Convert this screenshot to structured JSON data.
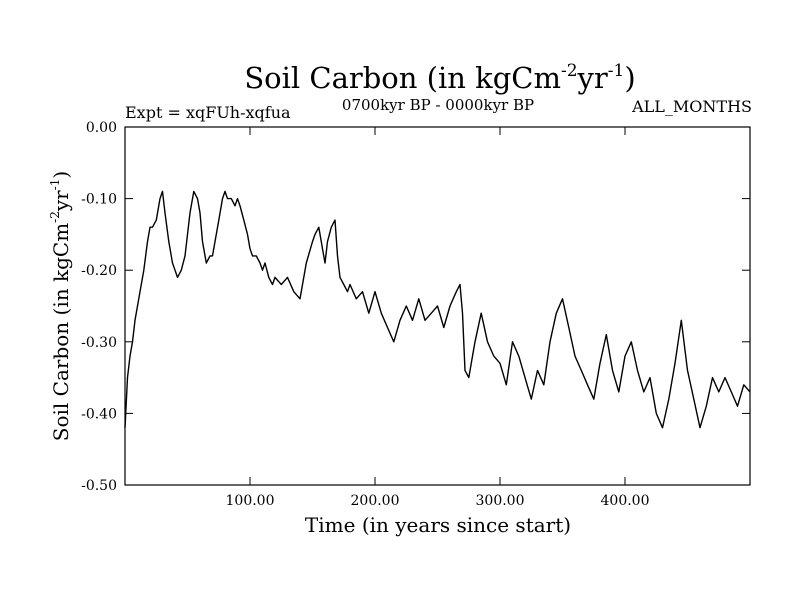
{
  "header": {
    "expt_label": "Expt = xqFUh-xqfua",
    "period_label": "0700kyr BP - 0000kyr BP",
    "months_label": "ALL_MONTHS"
  },
  "colors": {
    "line": "#000000",
    "background": "#ffffff"
  },
  "chart_data": {
    "type": "line",
    "title": {
      "text": "Soil Carbon (in kgCm",
      "exp1": "-2",
      "mid": "yr",
      "exp2": "-1",
      "close": ")"
    },
    "xlabel": "Time (in years since start)",
    "ylabel": {
      "text": "Soil Carbon (in kgCm",
      "exp1": "-2",
      "mid": "yr",
      "exp2": "-1",
      "close": ")"
    },
    "xlim": [
      0,
      500
    ],
    "ylim": [
      -0.5,
      0.0
    ],
    "x_ticks": [
      {
        "value": 100,
        "label": "100.00"
      },
      {
        "value": 200,
        "label": "200.00"
      },
      {
        "value": 300,
        "label": "300.00"
      },
      {
        "value": 400,
        "label": "400.00"
      }
    ],
    "y_ticks": [
      {
        "value": 0.0,
        "label": "0.00"
      },
      {
        "value": -0.1,
        "label": "-0.10"
      },
      {
        "value": -0.2,
        "label": "-0.20"
      },
      {
        "value": -0.3,
        "label": "-0.30"
      },
      {
        "value": -0.4,
        "label": "-0.40"
      },
      {
        "value": -0.5,
        "label": "-0.50"
      }
    ],
    "series": [
      {
        "name": "Soil Carbon",
        "x": [
          0,
          2,
          4,
          6,
          8,
          10,
          12,
          15,
          18,
          20,
          22,
          25,
          28,
          30,
          32,
          35,
          38,
          40,
          42,
          45,
          48,
          50,
          52,
          55,
          58,
          60,
          62,
          65,
          68,
          70,
          72,
          75,
          78,
          80,
          82,
          85,
          88,
          90,
          92,
          95,
          98,
          100,
          102,
          105,
          108,
          110,
          112,
          115,
          118,
          120,
          125,
          130,
          135,
          140,
          145,
          150,
          152,
          155,
          158,
          160,
          162,
          165,
          168,
          170,
          172,
          175,
          178,
          180,
          185,
          190,
          195,
          200,
          205,
          210,
          215,
          220,
          225,
          230,
          235,
          240,
          245,
          250,
          255,
          260,
          265,
          268,
          270,
          272,
          275,
          278,
          280,
          285,
          290,
          295,
          300,
          305,
          310,
          315,
          320,
          325,
          330,
          335,
          340,
          345,
          350,
          355,
          360,
          365,
          370,
          375,
          380,
          385,
          390,
          395,
          400,
          405,
          410,
          415,
          420,
          425,
          430,
          435,
          440,
          445,
          450,
          455,
          460,
          465,
          470,
          475,
          480,
          485,
          490,
          495,
          500
        ],
        "y": [
          -0.42,
          -0.35,
          -0.32,
          -0.3,
          -0.27,
          -0.25,
          -0.23,
          -0.2,
          -0.16,
          -0.14,
          -0.14,
          -0.13,
          -0.1,
          -0.09,
          -0.12,
          -0.16,
          -0.19,
          -0.2,
          -0.21,
          -0.2,
          -0.18,
          -0.15,
          -0.12,
          -0.09,
          -0.1,
          -0.12,
          -0.16,
          -0.19,
          -0.18,
          -0.18,
          -0.16,
          -0.13,
          -0.1,
          -0.09,
          -0.1,
          -0.1,
          -0.11,
          -0.1,
          -0.11,
          -0.13,
          -0.15,
          -0.17,
          -0.18,
          -0.18,
          -0.19,
          -0.2,
          -0.19,
          -0.21,
          -0.22,
          -0.21,
          -0.22,
          -0.21,
          -0.23,
          -0.24,
          -0.19,
          -0.16,
          -0.15,
          -0.14,
          -0.17,
          -0.19,
          -0.16,
          -0.14,
          -0.13,
          -0.18,
          -0.21,
          -0.22,
          -0.23,
          -0.22,
          -0.24,
          -0.23,
          -0.26,
          -0.23,
          -0.26,
          -0.28,
          -0.3,
          -0.27,
          -0.25,
          -0.27,
          -0.24,
          -0.27,
          -0.26,
          -0.25,
          -0.28,
          -0.25,
          -0.23,
          -0.22,
          -0.26,
          -0.34,
          -0.35,
          -0.32,
          -0.3,
          -0.26,
          -0.3,
          -0.32,
          -0.33,
          -0.36,
          -0.3,
          -0.32,
          -0.35,
          -0.38,
          -0.34,
          -0.36,
          -0.3,
          -0.26,
          -0.24,
          -0.28,
          -0.32,
          -0.34,
          -0.36,
          -0.38,
          -0.33,
          -0.29,
          -0.34,
          -0.37,
          -0.32,
          -0.3,
          -0.34,
          -0.37,
          -0.35,
          -0.4,
          -0.42,
          -0.38,
          -0.33,
          -0.27,
          -0.34,
          -0.38,
          -0.42,
          -0.39,
          -0.35,
          -0.37,
          -0.35,
          -0.37,
          -0.39,
          -0.36,
          -0.37
        ]
      }
    ]
  }
}
